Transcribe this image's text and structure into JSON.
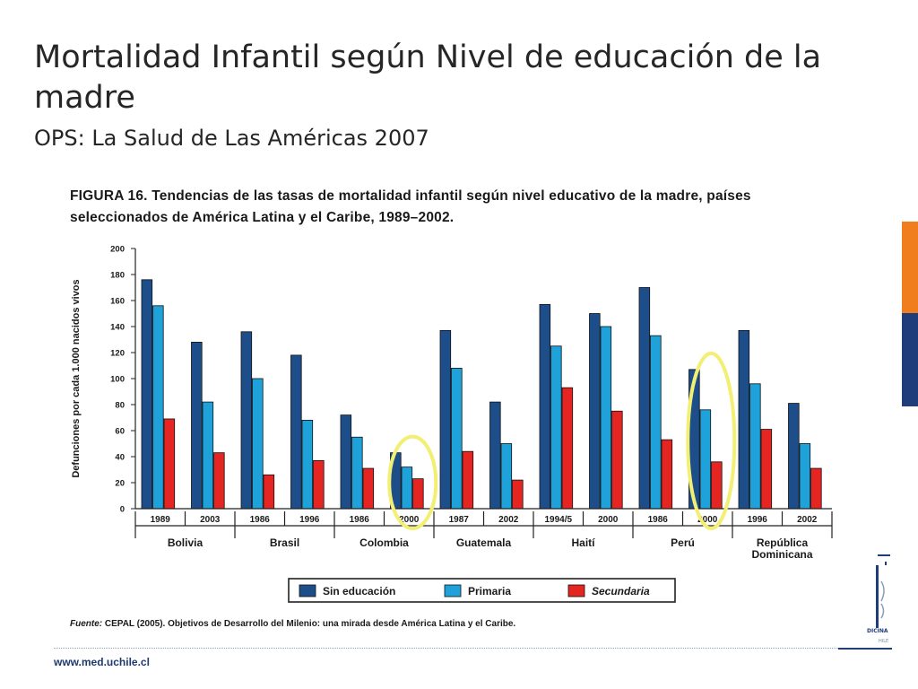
{
  "slide": {
    "title": "Mortalidad Infantil según Nivel de educación de la madre",
    "subtitle": "OPS: La Salud de Las Américas 2007",
    "footer_url": "www.med.uchile.cl",
    "logo_text": "DICINA",
    "logo_subtext": "HILE"
  },
  "figure": {
    "caption": "FIGURA 16. Tendencias de las tasas de mortalidad infantil según nivel educativo de la madre, países seleccionados de América Latina y el Caribe, 1989–2002.",
    "source_label": "Fuente:",
    "source_text": "CEPAL (2005). Objetivos de Desarrollo del Milenio: una mirada desde América Latina y el Caribe."
  },
  "chart_data": {
    "type": "bar",
    "ylabel": "Defunciones por cada 1.000 nacidos vivos",
    "ylim": [
      0,
      200
    ],
    "yticks": [
      0,
      20,
      40,
      60,
      80,
      100,
      120,
      140,
      160,
      180,
      200
    ],
    "categories": [
      "1989",
      "2003",
      "1986",
      "1996",
      "1986",
      "2000",
      "1987",
      "2002",
      "1994/5",
      "2000",
      "1986",
      "2000",
      "1996",
      "2002"
    ],
    "groups": [
      {
        "label": [
          "Bolivia"
        ],
        "span": [
          0,
          1
        ]
      },
      {
        "label": [
          "Brasil"
        ],
        "span": [
          2,
          3
        ]
      },
      {
        "label": [
          "Colombia"
        ],
        "span": [
          4,
          5
        ]
      },
      {
        "label": [
          "Guatemala"
        ],
        "span": [
          6,
          7
        ]
      },
      {
        "label": [
          "Haití"
        ],
        "span": [
          8,
          9
        ]
      },
      {
        "label": [
          "Perú"
        ],
        "span": [
          10,
          11
        ]
      },
      {
        "label": [
          "República",
          "Dominicana"
        ],
        "span": [
          12,
          13
        ]
      }
    ],
    "series": [
      {
        "name": "Sin educación",
        "color": "#1d4e8a",
        "values": [
          176,
          128,
          136,
          118,
          72,
          43,
          137,
          82,
          157,
          150,
          170,
          107,
          137,
          81
        ]
      },
      {
        "name": "Primaria",
        "color": "#1fa1d9",
        "values": [
          156,
          82,
          100,
          68,
          55,
          32,
          108,
          50,
          125,
          140,
          133,
          76,
          96,
          50
        ]
      },
      {
        "name": "Secundaria",
        "color": "#e52521",
        "values": [
          69,
          43,
          26,
          37,
          31,
          23,
          44,
          22,
          93,
          75,
          53,
          36,
          61,
          31
        ]
      }
    ],
    "highlights": [
      {
        "category_index": 5,
        "color": "#f2ef73"
      },
      {
        "category_index": 11,
        "color": "#f2ef73"
      }
    ]
  }
}
